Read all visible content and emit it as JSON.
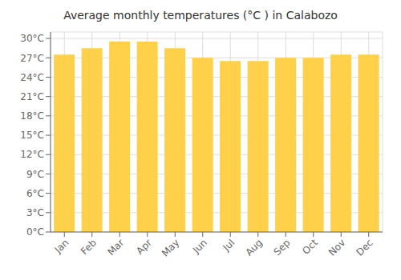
{
  "chart_data": {
    "type": "bar",
    "title": "Average monthly temperatures (°C ) in Calabozo",
    "categories": [
      "Jan",
      "Feb",
      "Mar",
      "Apr",
      "May",
      "Jun",
      "Jul",
      "Aug",
      "Sep",
      "Oct",
      "Nov",
      "Dec"
    ],
    "values": [
      27.5,
      28.5,
      29.5,
      29.5,
      28.5,
      27.0,
      26.5,
      26.5,
      27.0,
      27.0,
      27.5,
      27.5
    ],
    "color": "#FFD04A",
    "ylim": [
      0,
      31
    ],
    "yticks": [
      {
        "value": 0,
        "label": "0°C"
      },
      {
        "value": 3,
        "label": "3°C"
      },
      {
        "value": 6,
        "label": "6°C"
      },
      {
        "value": 9,
        "label": "9°C"
      },
      {
        "value": 12,
        "label": "12°C"
      },
      {
        "value": 15,
        "label": "15°C"
      },
      {
        "value": 18,
        "label": "18°C"
      },
      {
        "value": 21,
        "label": "21°C"
      },
      {
        "value": 24,
        "label": "24°C"
      },
      {
        "value": 27,
        "label": "27°C"
      },
      {
        "value": 30,
        "label": "30°C"
      }
    ],
    "grid": true
  }
}
